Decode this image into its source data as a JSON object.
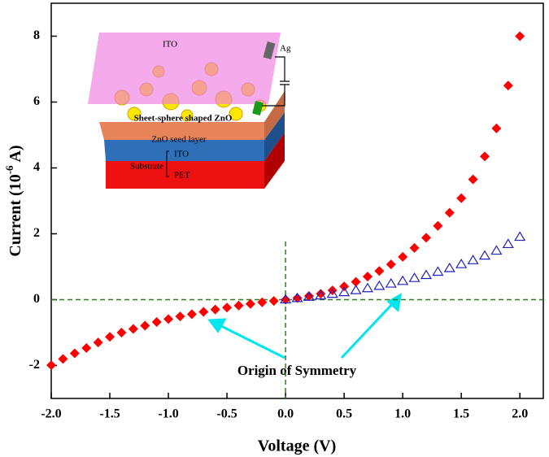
{
  "chart_data": {
    "type": "scatter",
    "x_label": "Voltage (V)",
    "y_label": {
      "text": "Current (10",
      "superscript": "-6",
      "suffix": " A)"
    },
    "xlim": [
      -2,
      2.2
    ],
    "ylim": [
      -3,
      9
    ],
    "xticks": [
      {
        "value": -2,
        "label": "-2.0"
      },
      {
        "value": -1.5,
        "label": "-1.5"
      },
      {
        "value": -1,
        "label": "-1.0"
      },
      {
        "value": -0.5,
        "label": "-0.5"
      },
      {
        "value": 0,
        "label": "0.0"
      },
      {
        "value": 0.5,
        "label": "0.5"
      },
      {
        "value": 1,
        "label": "1.0"
      },
      {
        "value": 1.5,
        "label": "1.5"
      },
      {
        "value": 2,
        "label": "2.0"
      }
    ],
    "yticks": [
      -2,
      0,
      2,
      4,
      6,
      8
    ],
    "reference_lines": {
      "h": 0,
      "v": 0,
      "color": "#2e7d1e"
    },
    "series": [
      {
        "color": "#ff0000",
        "marker": "diamond",
        "x": [
          -2.0,
          -1.9,
          -1.8,
          -1.7,
          -1.6,
          -1.5,
          -1.4,
          -1.3,
          -1.2,
          -1.1,
          -1.0,
          -0.9,
          -0.8,
          -0.7,
          -0.6,
          -0.5,
          -0.4,
          -0.3,
          -0.2,
          -0.1,
          0.0,
          0.1,
          0.2,
          0.3,
          0.4,
          0.5,
          0.6,
          0.7,
          0.8,
          0.9,
          1.0,
          1.1,
          1.2,
          1.3,
          1.4,
          1.5,
          1.6,
          1.7,
          1.8,
          1.9,
          2.0
        ],
        "values": [
          -1.99,
          -1.8,
          -1.63,
          -1.47,
          -1.3,
          -1.13,
          -1.0,
          -0.89,
          -0.79,
          -0.68,
          -0.59,
          -0.51,
          -0.44,
          -0.37,
          -0.3,
          -0.24,
          -0.18,
          -0.13,
          -0.08,
          -0.04,
          0.0,
          0.05,
          0.11,
          0.18,
          0.28,
          0.4,
          0.54,
          0.7,
          0.87,
          1.07,
          1.3,
          1.57,
          1.88,
          2.24,
          2.64,
          3.08,
          3.65,
          4.35,
          5.2,
          6.5,
          8.0
        ]
      },
      {
        "color": "#2020c0",
        "marker": "triangle",
        "x": [
          0.0,
          0.1,
          0.2,
          0.3,
          0.4,
          0.5,
          0.6,
          0.7,
          0.8,
          0.9,
          1.0,
          1.1,
          1.2,
          1.3,
          1.4,
          1.5,
          1.6,
          1.7,
          1.8,
          1.9,
          2.0
        ],
        "values": [
          0.0,
          0.04,
          0.08,
          0.12,
          0.17,
          0.22,
          0.28,
          0.34,
          0.41,
          0.48,
          0.56,
          0.65,
          0.74,
          0.84,
          0.95,
          1.07,
          1.19,
          1.33,
          1.48,
          1.68,
          1.9
        ]
      }
    ],
    "annotation": "Origin of Symmetry",
    "inset": {
      "top_layer": "ITO",
      "electrode": "Ag",
      "nanostructure": "Sheet-sphere shaped ZnO",
      "seed_layer": "ZnO seed layer",
      "bottom_ito": "ITO",
      "substrate": "Substrate",
      "pet": "PET"
    }
  }
}
